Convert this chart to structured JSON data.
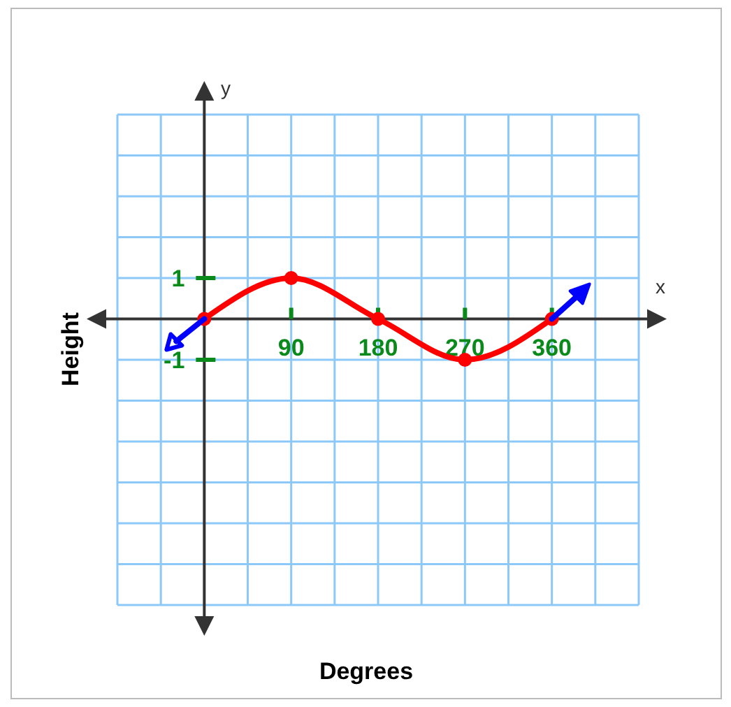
{
  "chart_data": {
    "type": "line",
    "xlabel": "Degrees",
    "ylabel": "Height",
    "annotations": [
      "x",
      "y"
    ],
    "xlim": [
      -90,
      450
    ],
    "ylim": [
      -7,
      5
    ],
    "xticks": [
      {
        "value": -90,
        "label": null
      },
      {
        "value": -45,
        "label": null
      },
      {
        "value": 0,
        "label": null
      },
      {
        "value": 45,
        "label": null
      },
      90,
      {
        "value": 135,
        "label": null
      },
      180,
      {
        "value": 225,
        "label": null
      },
      270,
      {
        "value": 315,
        "label": null
      },
      360,
      {
        "value": 405,
        "label": null
      },
      {
        "value": 450,
        "label": null
      }
    ],
    "yticks": [
      {
        "value": -7,
        "label": null
      },
      {
        "value": -6,
        "label": null
      },
      {
        "value": -5,
        "label": null
      },
      {
        "value": -4,
        "label": null
      },
      {
        "value": -3,
        "label": null
      },
      {
        "value": -2,
        "label": null
      },
      -1,
      {
        "value": 0,
        "label": null
      },
      1,
      {
        "value": 2,
        "label": null
      },
      {
        "value": 3,
        "label": null
      },
      {
        "value": 4,
        "label": null
      },
      {
        "value": 5,
        "label": null
      }
    ],
    "grid": true,
    "line_style": "solid",
    "series": [
      {
        "color": "#ff0000",
        "x": [
          0,
          90,
          180,
          270,
          360
        ],
        "values": [
          0,
          1,
          0,
          -1,
          0
        ],
        "marker": "circle"
      }
    ]
  }
}
